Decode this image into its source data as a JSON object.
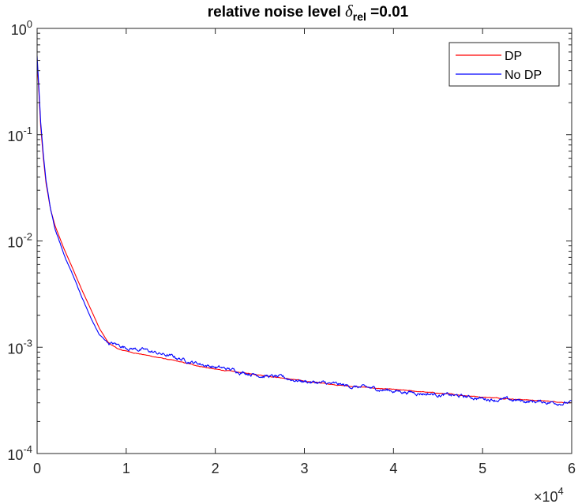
{
  "chart_data": {
    "type": "line",
    "title": {
      "prefix": "relative noise level ",
      "symbol": "δ",
      "subscript": "rel",
      "suffix": " =0.01"
    },
    "xlabel": "",
    "ylabel": "",
    "x_scale": "linear",
    "y_scale": "log",
    "xlim": [
      0,
      60000
    ],
    "ylim": [
      0.0001,
      1
    ],
    "x_multiplier": {
      "base": "10",
      "exponent": "4"
    },
    "x_ticks": [
      {
        "value": 0,
        "label": "0"
      },
      {
        "value": 10000,
        "label": "1"
      },
      {
        "value": 20000,
        "label": "2"
      },
      {
        "value": 30000,
        "label": "3"
      },
      {
        "value": 40000,
        "label": "4"
      },
      {
        "value": 50000,
        "label": "5"
      },
      {
        "value": 60000,
        "label": "6"
      }
    ],
    "y_ticks": [
      {
        "value": 0.0001,
        "base": "10",
        "exponent": "-4"
      },
      {
        "value": 0.001,
        "base": "10",
        "exponent": "-3"
      },
      {
        "value": 0.01,
        "base": "10",
        "exponent": "-2"
      },
      {
        "value": 0.1,
        "base": "10",
        "exponent": "-1"
      },
      {
        "value": 1,
        "base": "10",
        "exponent": "0"
      }
    ],
    "grid": false,
    "legend_position": "top-right",
    "series": [
      {
        "name": "DP",
        "color": "#ff0000",
        "noise": 0.004,
        "x": [
          0,
          200,
          400,
          700,
          1000,
          1500,
          2000,
          3000,
          4000,
          5000,
          6000,
          7000,
          8000,
          9000,
          10000,
          12000,
          15000,
          18000,
          20000,
          25000,
          30000,
          35000,
          40000,
          45000,
          50000,
          55000,
          60000
        ],
        "y": [
          0.5,
          0.25,
          0.12,
          0.06,
          0.035,
          0.02,
          0.014,
          0.0085,
          0.0055,
          0.0035,
          0.0023,
          0.0015,
          0.0011,
          0.00097,
          0.00092,
          0.00085,
          0.00076,
          0.00067,
          0.00062,
          0.00055,
          0.00048,
          0.00043,
          0.0004,
          0.00037,
          0.00034,
          0.00032,
          0.0003
        ]
      },
      {
        "name": "No DP",
        "color": "#0000ff",
        "noise": 0.022,
        "x": [
          0,
          200,
          400,
          700,
          1000,
          1500,
          2000,
          3000,
          4000,
          5000,
          6000,
          7000,
          8000,
          9000,
          10000,
          12000,
          15000,
          18000,
          20000,
          25000,
          30000,
          35000,
          40000,
          45000,
          50000,
          55000,
          60000
        ],
        "y": [
          0.55,
          0.27,
          0.13,
          0.065,
          0.037,
          0.02,
          0.013,
          0.0075,
          0.0048,
          0.003,
          0.0019,
          0.0013,
          0.0011,
          0.00105,
          0.001,
          0.00094,
          0.00082,
          0.00071,
          0.00065,
          0.00055,
          0.00048,
          0.00043,
          0.00039,
          0.00036,
          0.00033,
          0.00031,
          0.0003
        ]
      }
    ]
  }
}
